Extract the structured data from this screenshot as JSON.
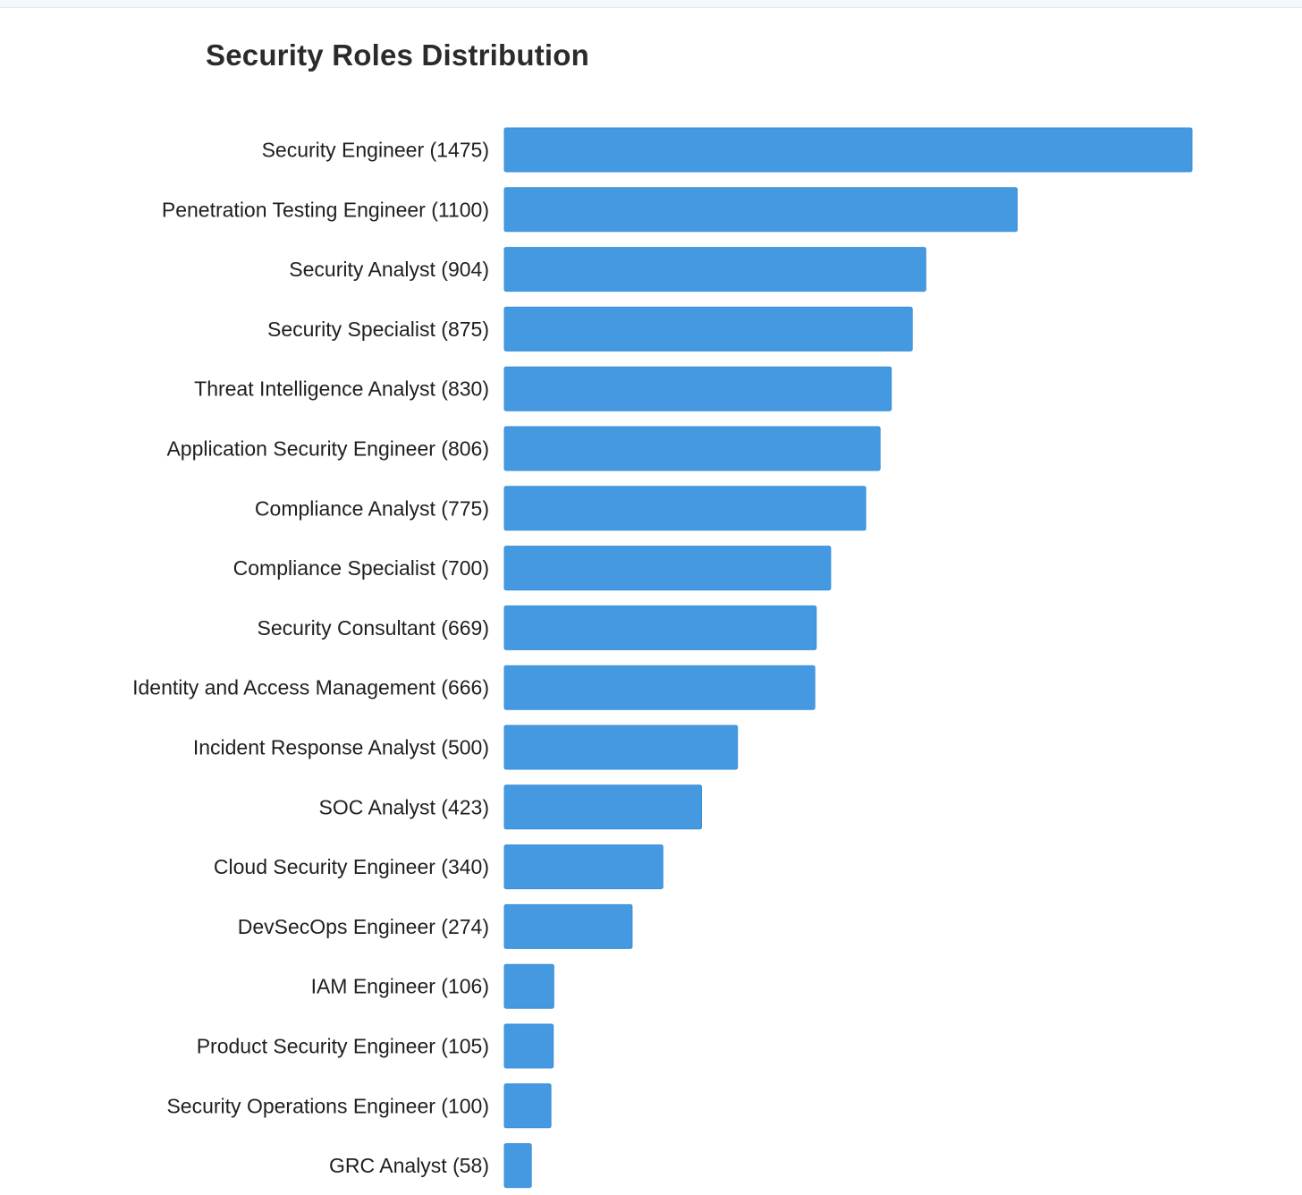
{
  "chart_data": {
    "type": "bar",
    "orientation": "horizontal",
    "title": "Security Roles Distribution",
    "xlabel": "",
    "ylabel": "",
    "grid": false,
    "bar_color": "#4499e0",
    "xlim": [
      0,
      1475
    ],
    "categories": [
      "Security Engineer",
      "Penetration Testing Engineer",
      "Security Analyst",
      "Security Specialist",
      "Threat Intelligence Analyst",
      "Application Security Engineer",
      "Compliance Analyst",
      "Compliance Specialist",
      "Security Consultant",
      "Identity and Access Management",
      "Incident Response Analyst",
      "SOC Analyst",
      "Cloud Security Engineer",
      "DevSecOps Engineer",
      "IAM Engineer",
      "Product Security Engineer",
      "Security Operations Engineer",
      "GRC Analyst"
    ],
    "values": [
      1475,
      1100,
      904,
      875,
      830,
      806,
      775,
      700,
      669,
      666,
      500,
      423,
      340,
      274,
      106,
      105,
      100,
      58
    ],
    "tick_labels": [
      "Security Engineer (1475)",
      "Penetration Testing Engineer (1100)",
      "Security Analyst (904)",
      "Security Specialist (875)",
      "Threat Intelligence Analyst (830)",
      "Application Security Engineer (806)",
      "Compliance Analyst (775)",
      "Compliance Specialist (700)",
      "Security Consultant (669)",
      "Identity and Access Management (666)",
      "Incident Response Analyst (500)",
      "SOC Analyst (423)",
      "Cloud Security Engineer (340)",
      "DevSecOps Engineer (274)",
      "IAM Engineer (106)",
      "Product Security Engineer (105)",
      "Security Operations Engineer (100)",
      "GRC Analyst (58)"
    ]
  }
}
